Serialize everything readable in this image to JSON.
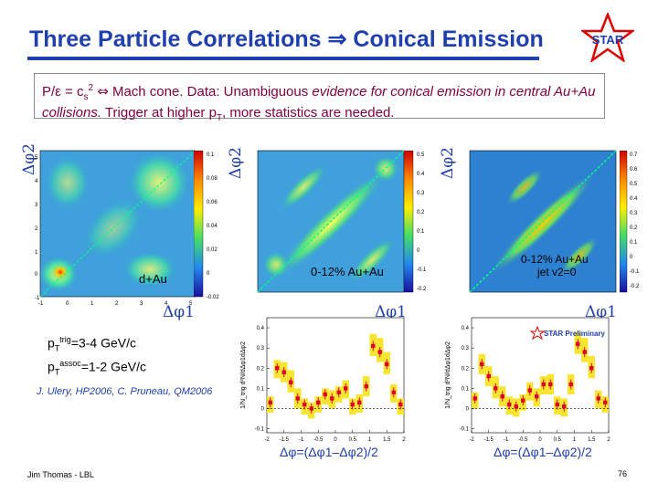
{
  "title": "Three Particle Correlations ⇒ Conical Emission",
  "logo": "STAR",
  "statement": {
    "p1": "P/ε = c",
    "sub": "s",
    "p2": "2",
    "arrow": "⇔",
    "p3": " Mach cone. Data: Unambiguous ",
    "italic1": "evidence for conical emission in central Au+Au collisions.",
    "p4": " Trigger at higher p",
    "p4sub": "T",
    "p5": ", more statistics are needed."
  },
  "axis_labels": {
    "dphi2": "Δφ2",
    "dphi1": "Δφ1",
    "combo": "Δφ=(Δφ1–Δφ2)/2"
  },
  "panels": {
    "dau": "d+Au",
    "auau": "0-12% Au+Au",
    "jet_line1": "0-12% Au+Au",
    "jet_line2": "jet v2=0",
    "preliminary": "STAR Preliminary"
  },
  "scales": {
    "dau": [
      "0.1",
      "0.08",
      "0.06",
      "0.04",
      "0.02",
      "0",
      "-0.02"
    ],
    "auau": [
      "0.5",
      "0.4",
      "0.3",
      "0.2",
      "0.1",
      "0",
      "-0.1",
      "-0.2"
    ],
    "jet": [
      "0.7",
      "0.6",
      "0.5",
      "0.4",
      "0.3",
      "0.2",
      "0.1",
      "0",
      "-0.1",
      "-0.2"
    ]
  },
  "ticks2d_y": [
    "5",
    "4",
    "3",
    "2",
    "1",
    "0",
    "-1"
  ],
  "ticks2d_x": [
    "-1",
    "0",
    "1",
    "2",
    "3",
    "4",
    "5"
  ],
  "ticks1d_y": [
    "0.4",
    "0.3",
    "0.2",
    "0.1",
    "0",
    "-0.1"
  ],
  "ticks1d_x": [
    "-2",
    "-1.5",
    "-1",
    "-0.5",
    "0",
    "0.5",
    "1",
    "1.5",
    "2"
  ],
  "ylabel_1d": "1/N_trig d²N/dΔφ1dΔφ2",
  "momentum": {
    "line1a": "p",
    "line1sub": "T",
    "line1sup": "trig",
    "line1b": "=3-4 GeV/c",
    "line2a": "p",
    "line2sub": "T",
    "line2sup": "assoc",
    "line2b": "=1-2 GeV/c"
  },
  "credit": "J. Ulery, HP2006, C. Pruneau, QM2006",
  "footer": "Jim Thomas - LBL",
  "page": "76",
  "colors": {
    "title": "#1f3fae",
    "statement": "#800040",
    "points": "#e0002a",
    "band": "#f7e21c",
    "diag": "#00ff88"
  },
  "chart_data": [
    {
      "type": "line",
      "title": "0-12% Au+Au",
      "xlabel": "Δφ=(Δφ1–Δφ2)/2",
      "ylabel": "1/N_trig d²N/dΔφ1dΔφ2",
      "xlim": [
        -2,
        2
      ],
      "ylim": [
        -0.12,
        0.45
      ],
      "x": [
        -1.9,
        -1.7,
        -1.5,
        -1.3,
        -1.1,
        -0.9,
        -0.7,
        -0.5,
        -0.3,
        -0.1,
        0.1,
        0.3,
        0.5,
        0.7,
        0.9,
        1.1,
        1.3,
        1.5,
        1.7,
        1.9
      ],
      "series": [
        {
          "name": "data",
          "values": [
            0.03,
            0.2,
            0.18,
            0.13,
            0.05,
            0.02,
            0.0,
            0.03,
            0.07,
            0.05,
            0.08,
            0.1,
            0.02,
            0.03,
            0.11,
            0.31,
            0.28,
            0.22,
            0.08,
            0.02
          ]
        },
        {
          "name": "systematic band",
          "values": [
            0.04,
            0.22,
            0.21,
            0.17,
            0.08,
            0.03,
            0.01,
            0.04,
            0.08,
            0.07,
            0.09,
            0.12,
            0.03,
            0.05,
            0.14,
            0.35,
            0.33,
            0.26,
            0.1,
            0.03
          ]
        }
      ]
    },
    {
      "type": "line",
      "title": "0-12% Au+Au jet v2=0",
      "xlabel": "Δφ=(Δφ1–Δφ2)/2",
      "ylabel": "1/N_trig d²N/dΔφ1dΔφ2",
      "xlim": [
        -2,
        2
      ],
      "ylim": [
        -0.12,
        0.45
      ],
      "x": [
        -1.9,
        -1.7,
        -1.5,
        -1.3,
        -1.1,
        -0.9,
        -0.7,
        -0.5,
        -0.3,
        -0.1,
        0.1,
        0.3,
        0.5,
        0.7,
        0.9,
        1.1,
        1.3,
        1.5,
        1.7,
        1.9
      ],
      "series": [
        {
          "name": "data",
          "values": [
            0.05,
            0.22,
            0.16,
            0.1,
            0.06,
            0.02,
            0.01,
            0.04,
            0.09,
            0.06,
            0.12,
            0.12,
            0.02,
            0.01,
            0.12,
            0.32,
            0.28,
            0.2,
            0.05,
            0.03
          ]
        },
        {
          "name": "systematic band",
          "values": [
            0.06,
            0.25,
            0.19,
            0.14,
            0.09,
            0.04,
            0.03,
            0.05,
            0.11,
            0.08,
            0.14,
            0.15,
            0.04,
            0.03,
            0.15,
            0.36,
            0.33,
            0.24,
            0.07,
            0.04
          ]
        }
      ]
    }
  ]
}
